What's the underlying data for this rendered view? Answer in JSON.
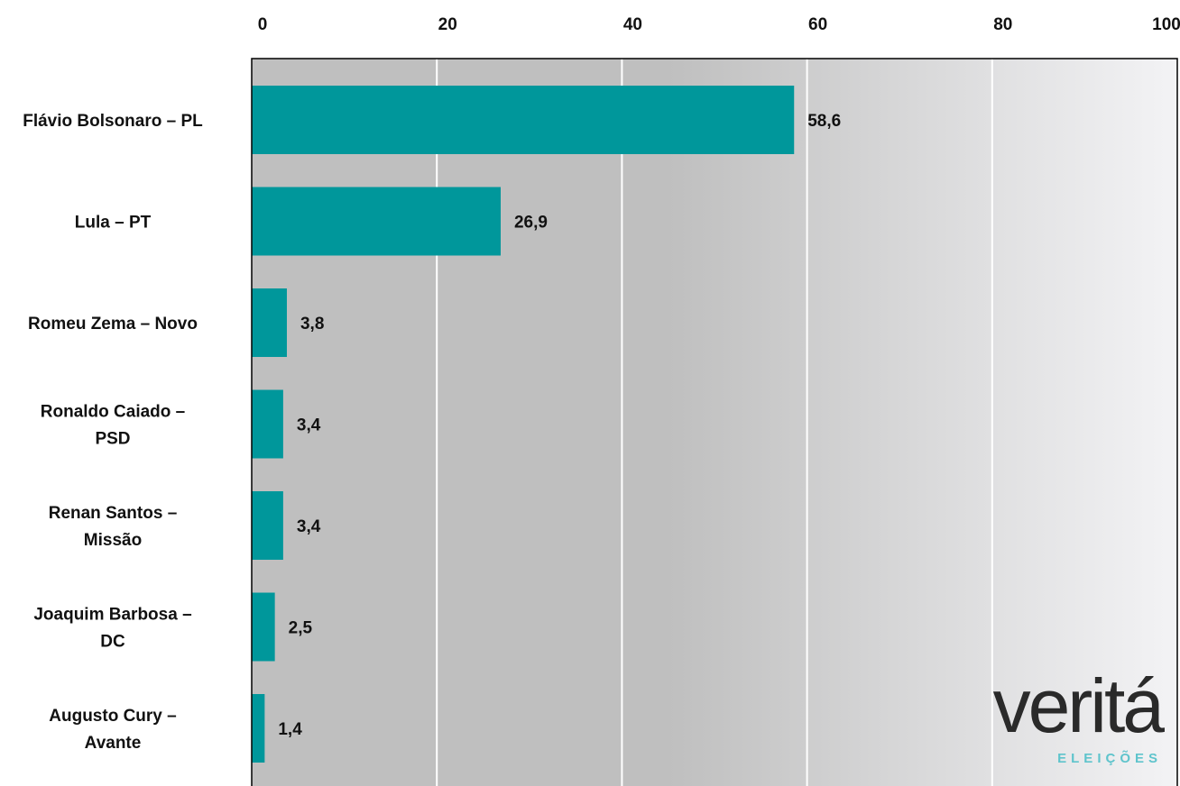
{
  "chart_data": {
    "type": "bar",
    "orientation": "horizontal",
    "categories": [
      [
        "Flávio Bolsonaro – PL"
      ],
      [
        "Lula – PT"
      ],
      [
        "Romeu Zema – Novo"
      ],
      [
        "Ronaldo Caiado –",
        "PSD"
      ],
      [
        "Renan Santos –",
        "Missão"
      ],
      [
        "Joaquim Barbosa –",
        "DC"
      ],
      [
        "Augusto Cury –",
        "Avante"
      ]
    ],
    "values": [
      58.6,
      26.9,
      3.8,
      3.4,
      3.4,
      2.5,
      1.4
    ],
    "value_labels": [
      "58,6",
      "26,9",
      "3,8",
      "3,4",
      "3,4",
      "2,5",
      "1,4"
    ],
    "xlim": [
      0,
      100
    ],
    "xticks": [
      0,
      20,
      40,
      60,
      80,
      100
    ],
    "x_axis_position": "top",
    "grid": true,
    "title": "",
    "xlabel": "",
    "ylabel": "",
    "colors": {
      "bar": "#00979b",
      "plot_bg_left": "#bfbfbf",
      "plot_bg_right": "#f3f3f5",
      "grid": "#ffffff",
      "frame": "#000000"
    }
  },
  "logo": {
    "main_text": "veritá",
    "sub_text": "ELEIÇÕES"
  }
}
